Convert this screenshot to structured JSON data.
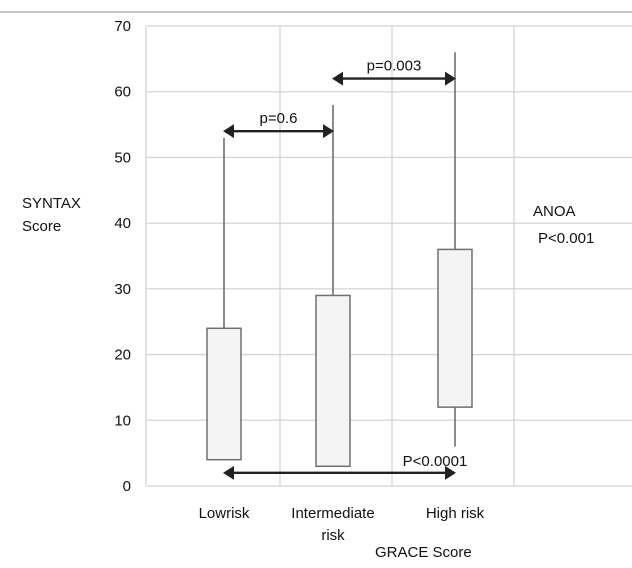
{
  "chart_data": {
    "type": "boxplot",
    "categories": [
      "Lowrisk",
      "Intermediate risk",
      "High risk"
    ],
    "boxes": [
      {
        "category": "Lowrisk",
        "min": 4,
        "q1": 4,
        "q3": 24,
        "max": 53
      },
      {
        "category": "Intermediate risk",
        "min": 3,
        "q1": 3,
        "q3": 29,
        "max": 58
      },
      {
        "category": "High risk",
        "min": 6,
        "q1": 12,
        "q3": 36,
        "max": 66
      }
    ],
    "ylabel": [
      "SYNTAX",
      "Score"
    ],
    "xlabel": "GRACE Score",
    "xtick_labels": [
      [
        "Lowrisk"
      ],
      [
        "Intermediate",
        "risk"
      ],
      [
        "High risk"
      ]
    ],
    "ylim": [
      0,
      70
    ],
    "yticks": [
      0,
      10,
      20,
      30,
      40,
      50,
      60,
      70
    ],
    "grid": true,
    "comparisons": [
      {
        "label": "p=0.6",
        "from": "Lowrisk",
        "to": "Intermediate risk",
        "y": 54
      },
      {
        "label": "p=0.003",
        "from": "Intermediate risk",
        "to": "High risk",
        "y": 62
      },
      {
        "label": "P<0.0001",
        "from": "Lowrisk",
        "to": "High risk",
        "y": 2
      }
    ],
    "annotation": [
      "ANOA",
      "P<0.001"
    ],
    "colors": {
      "box_fill": "#f4f4f4",
      "line": "#707070",
      "grid": "#d4d4d4",
      "arrow": "#222222"
    }
  }
}
